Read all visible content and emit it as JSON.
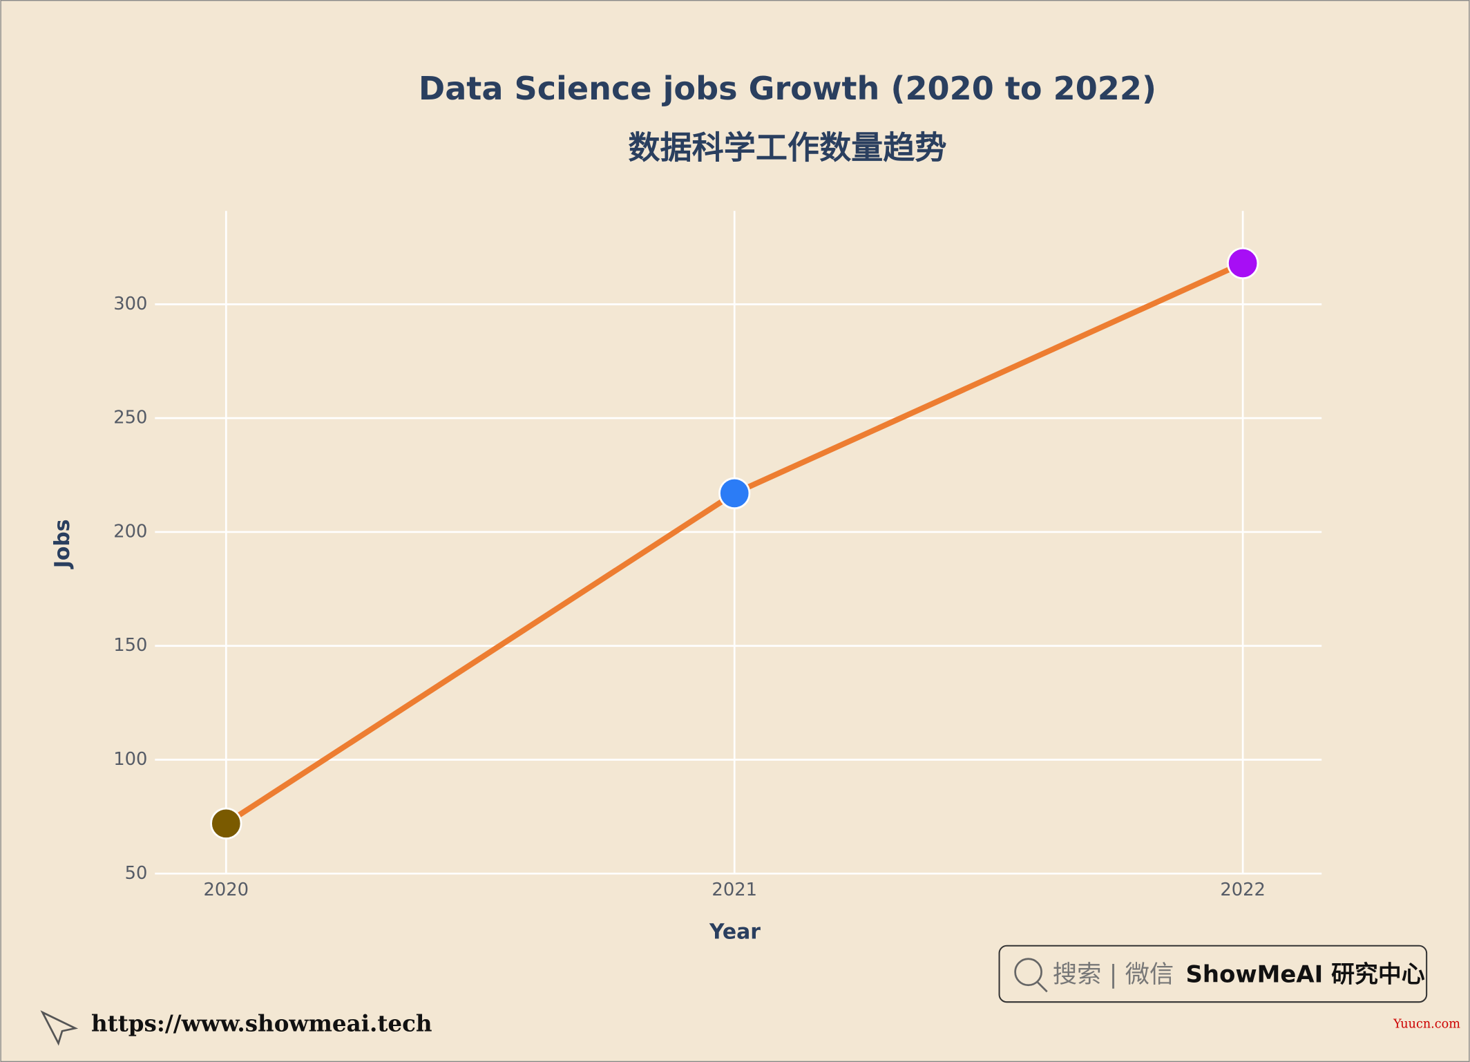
{
  "chart_data": {
    "type": "line",
    "title": "Data Science jobs Growth (2020 to 2022)",
    "subtitle": "数据科学工作数量趋势",
    "x_label": "Year",
    "y_label": "Jobs",
    "x": [
      2020,
      2021,
      2022
    ],
    "values": [
      72,
      217,
      318
    ],
    "line_color": "#ed7d31",
    "marker_colors": [
      "#7a5a00",
      "#2b7cf6",
      "#a70ef5"
    ],
    "xlim": [
      2019.86,
      2022.155
    ],
    "xticks": [
      2020,
      2021,
      2022
    ],
    "ylim": [
      50,
      341
    ],
    "yticks": [
      50,
      100,
      150,
      200,
      250,
      300
    ],
    "grid": true
  },
  "watermark": {
    "search": "搜索 | 微信",
    "brand": "ShowMeAI 研究中心"
  },
  "footer": {
    "url": "https://www.showmeai.tech",
    "source": "Yuucn.com"
  }
}
